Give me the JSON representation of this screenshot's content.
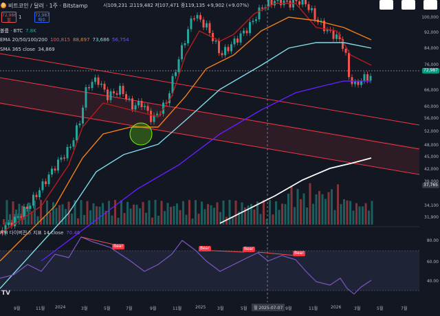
{
  "header": {
    "coin_icon": "bitcoin-icon",
    "title": "비트코인 / 달러 · 1주 · Bitstamp",
    "ohlc": "시109,231 고119,482 저107,471 종119,135 +9,902 (+9.07%)",
    "sell_price": "72,986",
    "sell_label": "팔",
    "buy_price": "72,987",
    "buy_label": "매수",
    "spread": "1"
  },
  "indicators": {
    "volume": {
      "label": "볼륨 · BTC",
      "value": "7.8K"
    },
    "ema": {
      "label": "EMA 20/50/100/200",
      "values": [
        "100,815",
        "88,697",
        "73,686",
        "56,754"
      ],
      "colors": [
        "#ef5350",
        "#f57f17",
        "#80deea",
        "#7c4dff"
      ]
    },
    "sma": {
      "label": "SMA 365 close",
      "value": "34,869"
    },
    "rsi": {
      "label": "RSI 다이버전스 지표 14 close",
      "value": "70.46"
    }
  },
  "price_axis": [
    "100,000",
    "92,000",
    "84,000",
    "76,000",
    "66,000",
    "60,000",
    "56,000",
    "52,000",
    "48,000",
    "45,000",
    "42,000",
    "39,000",
    "34,100",
    "31,900"
  ],
  "rsi_axis": [
    "80.00",
    "60.00",
    "40.00"
  ],
  "price_tags": {
    "current": "72,987",
    "current_color": "#089981",
    "sma": "37,765"
  },
  "time_axis": [
    "9월",
    "11월",
    "2024",
    "3월",
    "5월",
    "7월",
    "9월",
    "11월",
    "2025",
    "3월",
    "5월",
    "7월",
    "9월",
    "11월",
    "2026",
    "3월",
    "5월",
    "7월"
  ],
  "crosshair_time": "월 2025-07-07",
  "divergence_labels": [
    "Bear",
    "Bear",
    "Bear",
    "Bear"
  ],
  "watermark": "TV",
  "colors": {
    "bg": "#131722",
    "up": "#26a69a",
    "down": "#ef5350",
    "channel": "#f23645",
    "sma": "#ffffff",
    "rsi": "#7e57c2"
  }
}
